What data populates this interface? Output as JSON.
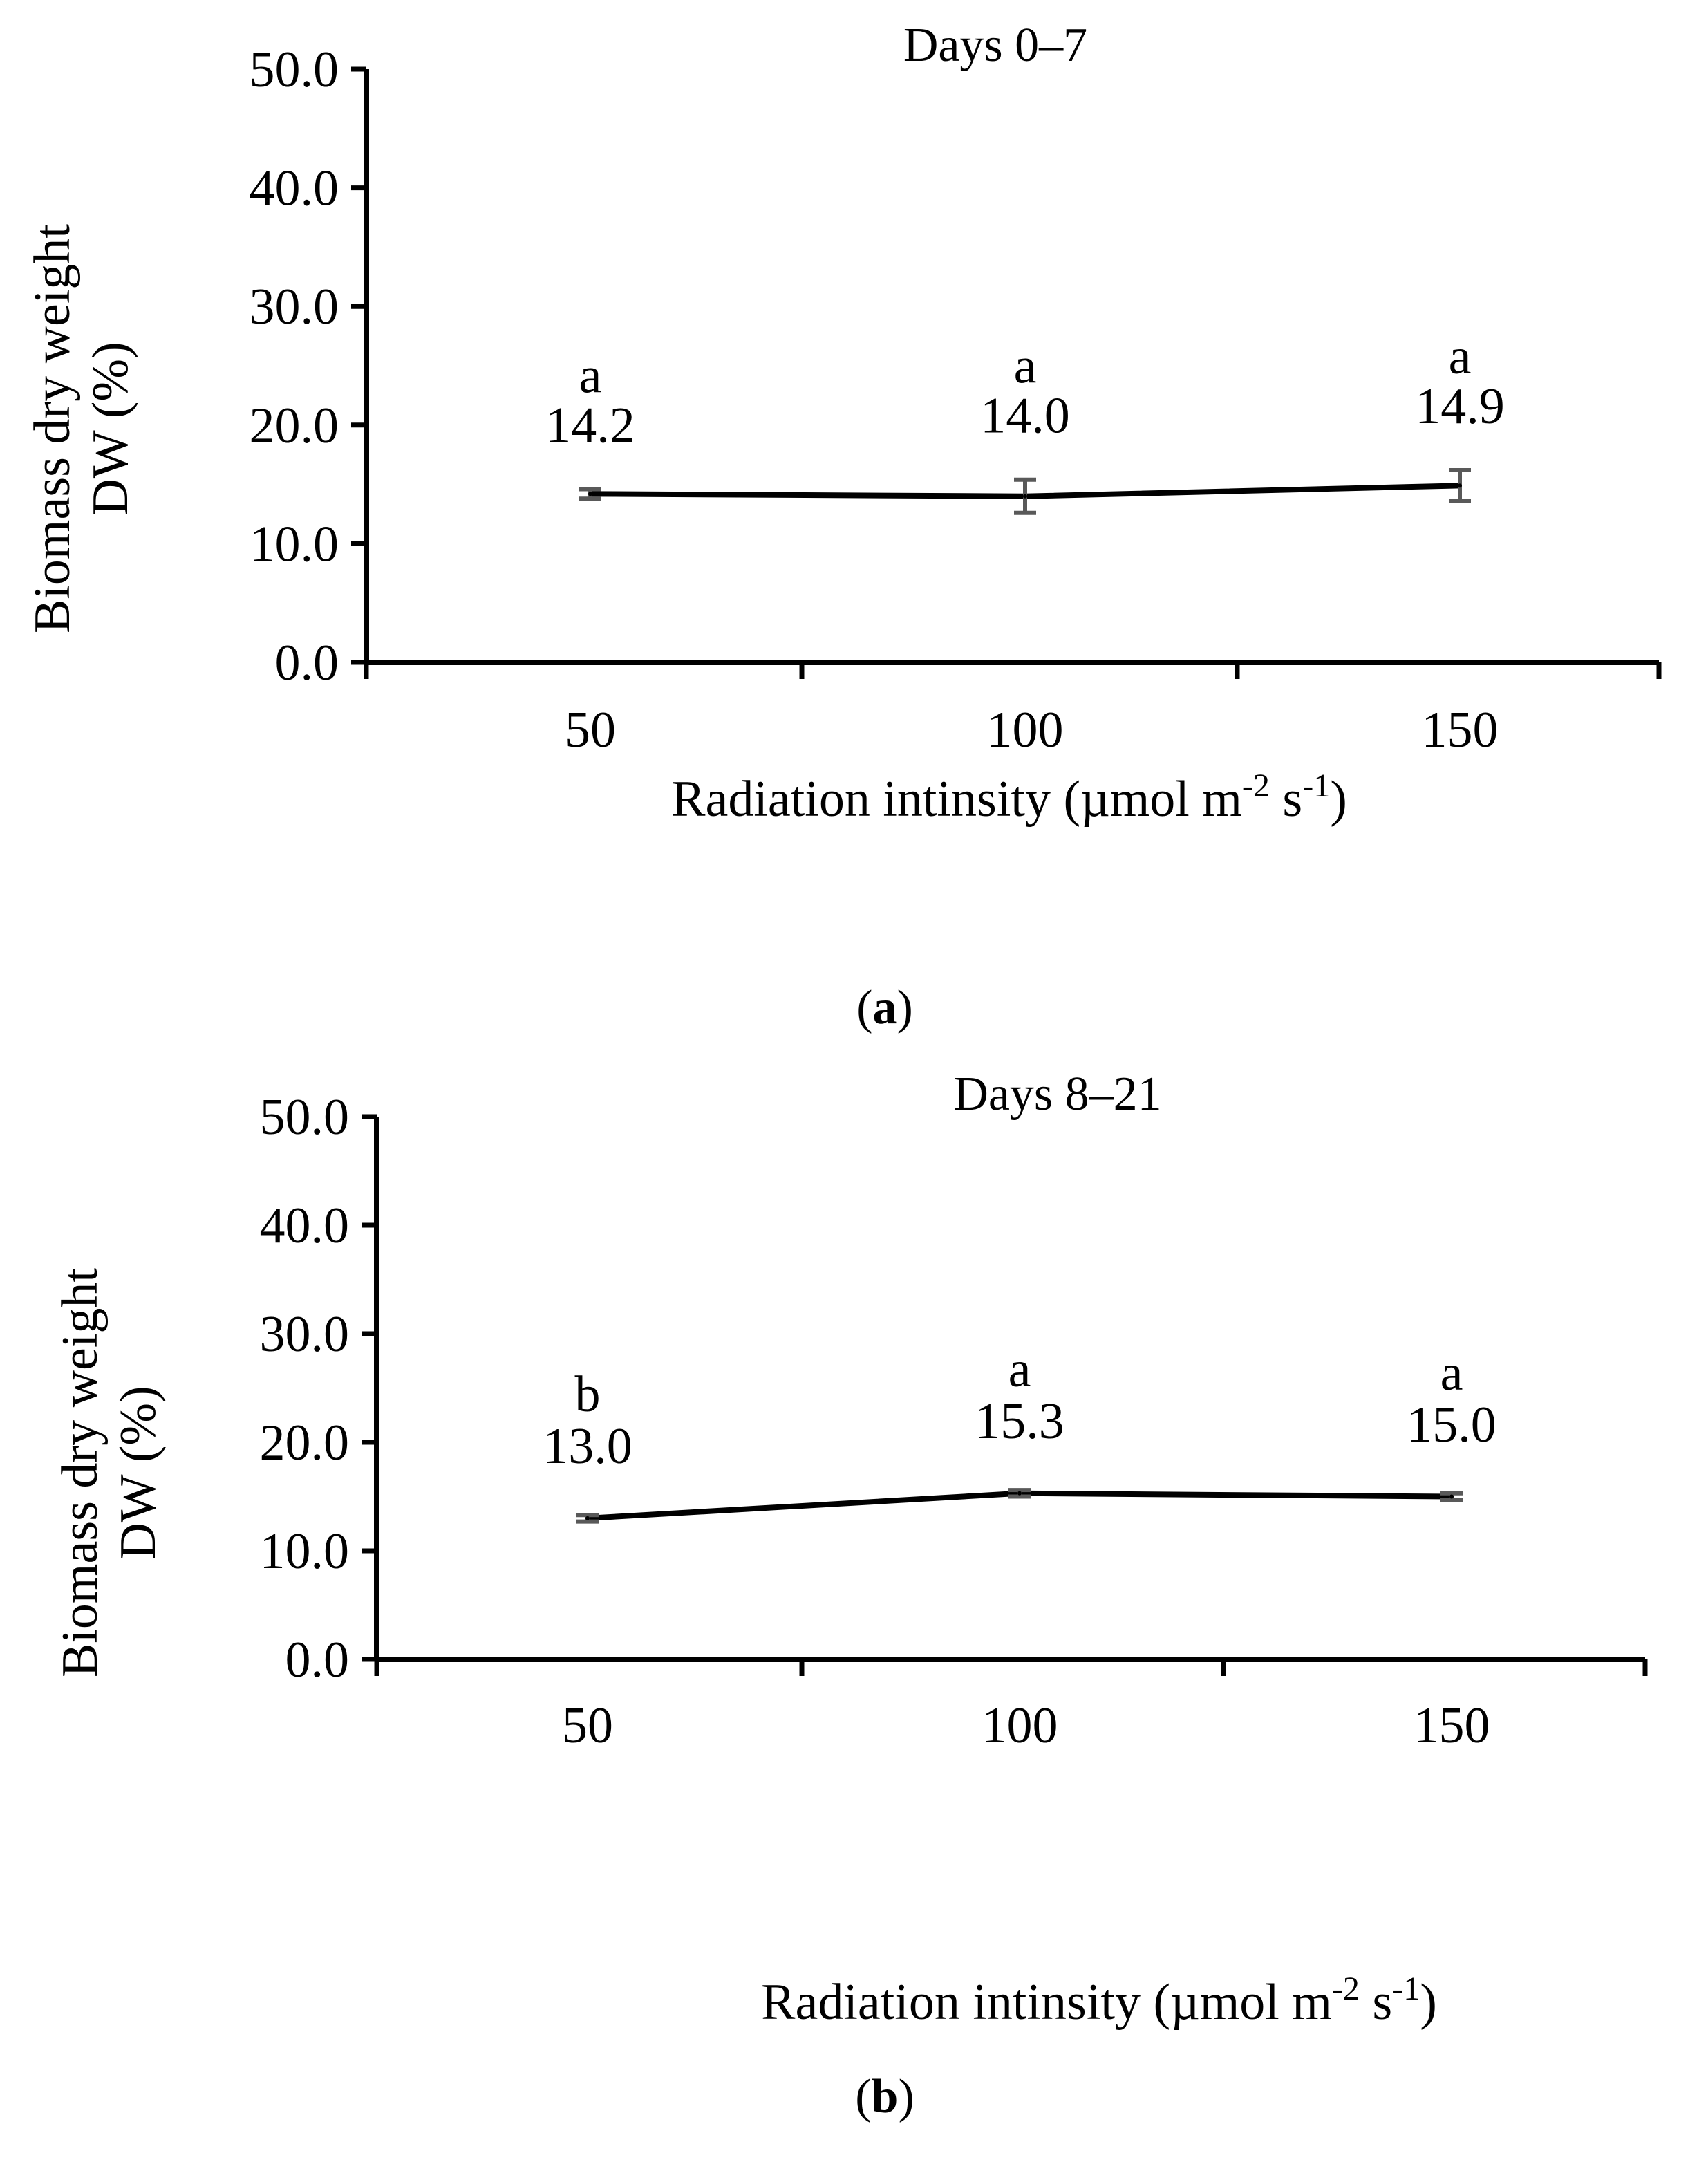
{
  "chart_data": [
    {
      "panel": "a",
      "panel_label": "a",
      "type": "line",
      "title": "Days 0–7",
      "ylabel_line1": "Biomass dry weight",
      "ylabel_line2": "DW (%)",
      "xlabel_main": "Radiation intinsity (µmol m",
      "xlabel_sup1": "-2",
      "xlabel_mid": " s",
      "xlabel_sup2": "-1",
      "xlabel_end": ")",
      "x": [
        50,
        100,
        150
      ],
      "x_tick_labels": [
        "50",
        "100",
        "150"
      ],
      "values": [
        14.2,
        14.0,
        14.9
      ],
      "value_labels": [
        "14.2",
        "14.0",
        "14.9"
      ],
      "errors": [
        0.4,
        1.4,
        1.3
      ],
      "letters": [
        "a",
        "a",
        "a"
      ],
      "ylim": [
        0,
        50
      ],
      "y_ticks": [
        0,
        10,
        20,
        30,
        40,
        50
      ],
      "y_tick_labels": [
        "0.0",
        "10.0",
        "20.0",
        "30.0",
        "40.0",
        "50.0"
      ],
      "grid": false,
      "line_color": "#000000",
      "error_color": "#595959"
    },
    {
      "panel": "b",
      "panel_label": "b",
      "type": "line",
      "title": "Days 8–21",
      "ylabel_line1": "Biomass dry weight",
      "ylabel_line2": "DW (%)",
      "xlabel_main": "Radiation intinsity (µmol m",
      "xlabel_sup1": "-2",
      "xlabel_mid": " s",
      "xlabel_sup2": "-1",
      "xlabel_end": ")",
      "x": [
        50,
        100,
        150
      ],
      "x_tick_labels": [
        "50",
        "100",
        "150"
      ],
      "values": [
        13.0,
        15.3,
        15.0
      ],
      "value_labels": [
        "13.0",
        "15.3",
        "15.0"
      ],
      "errors": [
        0.3,
        0.3,
        0.3
      ],
      "letters": [
        "b",
        "a",
        "a"
      ],
      "ylim": [
        0,
        50
      ],
      "y_ticks": [
        0,
        10,
        20,
        30,
        40,
        50
      ],
      "y_tick_labels": [
        "0.0",
        "10.0",
        "20.0",
        "30.0",
        "40.0",
        "50.0"
      ],
      "grid": false,
      "line_color": "#000000",
      "error_color": "#595959"
    }
  ]
}
